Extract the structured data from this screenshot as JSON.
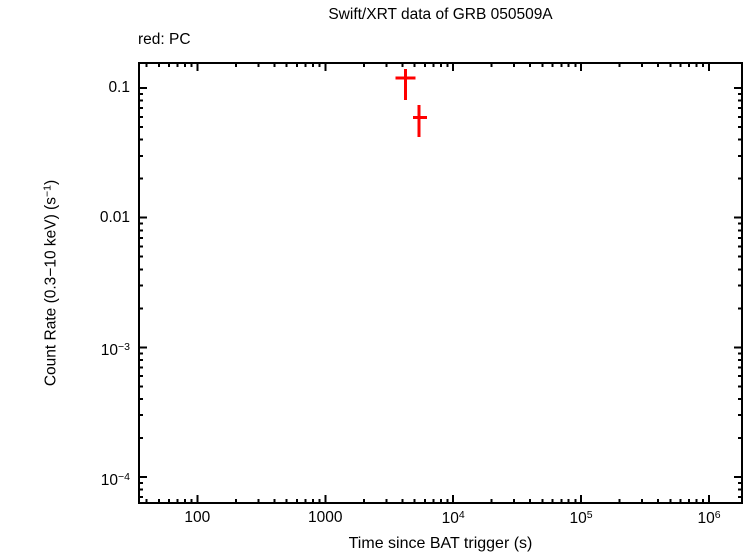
{
  "chart_data": {
    "type": "scatter",
    "title": "Swift/XRT data of GRB 050509A",
    "annotation": "red: PC",
    "xlabel": "Time since BAT trigger (s)",
    "ylabel": {
      "pre": "Count Rate (0.3−10 keV) (s",
      "sup": "−1",
      "post": ")"
    },
    "xscale": "log",
    "yscale": "log",
    "xlim": [
      35,
      1810000
    ],
    "ylim": [
      6.3e-05,
      0.156
    ],
    "grid": false,
    "legend": "none",
    "axis_color": "#000000",
    "background_color": "#ffffff",
    "x_ticks": [
      {
        "value": 100,
        "label": "100"
      },
      {
        "value": 1000,
        "label": "1000"
      },
      {
        "value": 10000,
        "label": "10^{4}"
      },
      {
        "value": 100000,
        "label": "10^{5}"
      },
      {
        "value": 1000000,
        "label": "10^{6}"
      }
    ],
    "y_ticks": [
      {
        "value": 0.1,
        "label": "0.1"
      },
      {
        "value": 0.01,
        "label": "0.01"
      },
      {
        "value": 0.001,
        "label": "10^{−3}"
      },
      {
        "value": 0.0001,
        "label": "10^{−4}"
      }
    ],
    "series": [
      {
        "name": "PC",
        "color": "#ff0000",
        "marker": "cross-error-bars",
        "points": [
          {
            "t": 4240,
            "t_lo": 3540,
            "t_hi": 5070,
            "rate": 0.119,
            "rate_lo": 0.081,
            "rate_hi": 0.14
          },
          {
            "t": 5400,
            "t_lo": 4850,
            "t_hi": 6250,
            "rate": 0.059,
            "rate_lo": 0.042,
            "rate_hi": 0.074
          }
        ]
      }
    ]
  }
}
